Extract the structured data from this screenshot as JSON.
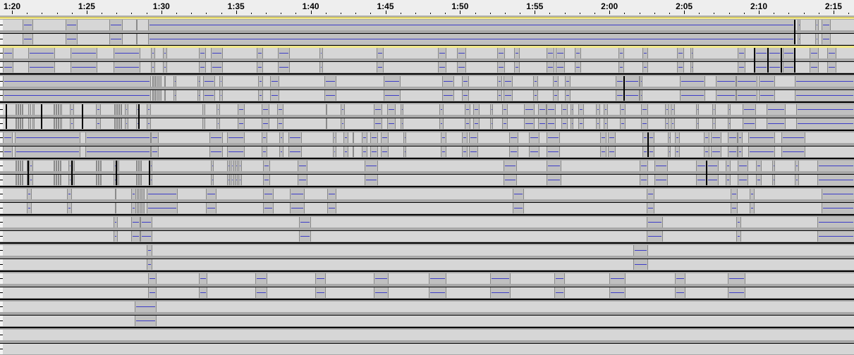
{
  "ruler": {
    "labels": [
      "1:20",
      "1:25",
      "1:30",
      "1:35",
      "1:40",
      "1:45",
      "1:50",
      "1:55",
      "2:00",
      "2:05",
      "2:10",
      "2:15"
    ],
    "start_seconds": 80,
    "label_interval_seconds": 5,
    "minor_tick_seconds": 1
  },
  "colors": {
    "background": "#d6d6d6",
    "clip": "#c0c0c0",
    "waveform": "#3c3cc8",
    "selection": "#f2e98a",
    "separator": "#a8a8a8"
  },
  "tracks": [
    {
      "selected": true,
      "markers": [
        132.4
      ],
      "clips": [
        [
          80.7,
          81.4
        ],
        [
          83.6,
          84.4
        ],
        [
          86.5,
          87.4
        ],
        [
          88.3,
          88.4
        ],
        [
          89.1,
          132.4
        ],
        [
          132.6,
          132.8
        ],
        [
          133.8,
          134.0
        ],
        [
          134.2,
          134.8
        ]
      ]
    },
    {
      "selected": false,
      "markers": [
        129.7,
        130.6,
        131.5,
        132.4
      ],
      "clips": [
        [
          79.4,
          80.1
        ],
        [
          81.1,
          82.9
        ],
        [
          83.9,
          85.7
        ],
        [
          86.8,
          88.6
        ],
        [
          89.3,
          89.6
        ],
        [
          90.1,
          90.4
        ],
        [
          92.5,
          93.0
        ],
        [
          93.3,
          94.1
        ],
        [
          96.4,
          96.8
        ],
        [
          97.8,
          98.6
        ],
        [
          100.6,
          100.8
        ],
        [
          104.4,
          104.9
        ],
        [
          108.5,
          109.1
        ],
        [
          109.8,
          110.4
        ],
        [
          112.5,
          113.0
        ],
        [
          113.6,
          114.0
        ],
        [
          115.8,
          116.3
        ],
        [
          116.4,
          117.0
        ],
        [
          117.7,
          118.1
        ],
        [
          120.6,
          121.0
        ],
        [
          122.2,
          122.6
        ],
        [
          124.5,
          125.0
        ],
        [
          125.4,
          125.6
        ],
        [
          128.6,
          129.1
        ],
        [
          129.7,
          130.6
        ],
        [
          130.6,
          131.5
        ],
        [
          131.6,
          132.4
        ],
        [
          133.4,
          134.0
        ],
        [
          134.6,
          135.2
        ]
      ]
    },
    {
      "selected": false,
      "markers": [
        121.0
      ],
      "clips": [
        [
          79.4,
          89.3
        ],
        [
          89.4,
          89.5
        ],
        [
          89.55,
          89.65
        ],
        [
          89.7,
          89.8
        ],
        [
          89.85,
          90.0
        ],
        [
          90.2,
          90.3
        ],
        [
          90.8,
          91.0
        ],
        [
          92.4,
          92.6
        ],
        [
          92.8,
          93.6
        ],
        [
          93.9,
          94.1
        ],
        [
          96.5,
          96.8
        ],
        [
          97.3,
          97.9
        ],
        [
          100.9,
          101.7
        ],
        [
          104.9,
          106.0
        ],
        [
          108.8,
          109.6
        ],
        [
          110.1,
          110.6
        ],
        [
          112.5,
          112.8
        ],
        [
          112.9,
          113.5
        ],
        [
          114.9,
          115.2
        ],
        [
          116.2,
          116.6
        ],
        [
          117.0,
          117.4
        ],
        [
          120.4,
          121.0
        ],
        [
          121.0,
          122.0
        ],
        [
          122.0,
          122.2
        ],
        [
          124.7,
          126.4
        ],
        [
          127.1,
          128.5
        ],
        [
          128.5,
          129.9
        ],
        [
          130.0,
          131.1
        ],
        [
          132.4,
          136.4
        ]
      ]
    },
    {
      "selected": false,
      "markers": [
        79.6,
        82.0,
        84.7,
        88.5
      ],
      "clips": [
        [
          80.24,
          80.33
        ],
        [
          80.38,
          80.47
        ],
        [
          80.52,
          80.61
        ],
        [
          80.66,
          80.75
        ],
        [
          81.09,
          81.27
        ],
        [
          81.37,
          81.51
        ],
        [
          82.78,
          82.88
        ],
        [
          82.93,
          83.02
        ],
        [
          83.07,
          83.16
        ],
        [
          83.21,
          83.35
        ],
        [
          83.87,
          84.15
        ],
        [
          85.62,
          85.95
        ],
        [
          86.84,
          86.94
        ],
        [
          86.99,
          87.08
        ],
        [
          87.13,
          87.22
        ],
        [
          87.27,
          87.36
        ],
        [
          87.55,
          87.79
        ],
        [
          88.31,
          88.54
        ],
        [
          89.02,
          89.3
        ],
        [
          92.74,
          92.93
        ],
        [
          93.69,
          93.92
        ],
        [
          95.1,
          95.58
        ],
        [
          96.71,
          97.23
        ],
        [
          97.75,
          98.17
        ],
        [
          101.0,
          101.1
        ],
        [
          102.0,
          102.3
        ],
        [
          104.2,
          104.8
        ],
        [
          105.1,
          105.7
        ],
        [
          106.0,
          106.2
        ],
        [
          108.6,
          108.9
        ],
        [
          110.3,
          110.7
        ],
        [
          110.9,
          111.3
        ],
        [
          112.0,
          112.2
        ],
        [
          112.8,
          113.2
        ],
        [
          114.3,
          115.0
        ],
        [
          115.2,
          115.8
        ],
        [
          115.8,
          116.4
        ],
        [
          116.8,
          117.2
        ],
        [
          117.4,
          117.6
        ],
        [
          117.9,
          118.3
        ],
        [
          119.1,
          119.4
        ],
        [
          119.6,
          119.9
        ],
        [
          120.7,
          121.1
        ],
        [
          122.1,
          122.6
        ],
        [
          123.7,
          124.0
        ],
        [
          124.1,
          124.4
        ],
        [
          125.8,
          126.0
        ],
        [
          126.9,
          127.1
        ],
        [
          127.9,
          128.1
        ],
        [
          128.9,
          129.8
        ],
        [
          130.5,
          131.8
        ],
        [
          132.5,
          136.4
        ]
      ]
    },
    {
      "selected": false,
      "markers": [
        122.6
      ],
      "clips": [
        [
          79.4,
          80.05
        ],
        [
          80.2,
          84.6
        ],
        [
          84.9,
          89.3
        ],
        [
          89.3,
          89.8
        ],
        [
          93.2,
          94.1
        ],
        [
          94.4,
          95.6
        ],
        [
          96.7,
          97.1
        ],
        [
          97.9,
          98.2
        ],
        [
          98.5,
          99.4
        ],
        [
          101.5,
          101.7
        ],
        [
          102.2,
          102.5
        ],
        [
          102.8,
          102.9
        ],
        [
          103.4,
          103.8
        ],
        [
          104.0,
          104.5
        ],
        [
          104.7,
          105.2
        ],
        [
          106.2,
          106.4
        ],
        [
          108.7,
          109.1
        ],
        [
          110.1,
          110.5
        ],
        [
          110.6,
          111.2
        ],
        [
          113.3,
          113.9
        ],
        [
          114.6,
          115.3
        ],
        [
          115.8,
          116.7
        ],
        [
          119.4,
          119.8
        ],
        [
          119.9,
          120.4
        ],
        [
          122.2,
          122.6
        ],
        [
          122.6,
          123.0
        ],
        [
          123.9,
          124.1
        ],
        [
          124.4,
          124.7
        ],
        [
          126.3,
          126.7
        ],
        [
          126.8,
          127.5
        ],
        [
          127.9,
          128.6
        ],
        [
          128.6,
          128.9
        ],
        [
          129.3,
          131.1
        ],
        [
          131.5,
          133.1
        ]
      ]
    },
    {
      "selected": false,
      "markers": [
        81.1,
        84.0,
        87.0,
        89.2,
        126.5
      ],
      "clips": [
        [
          80.24,
          80.33
        ],
        [
          80.38,
          80.47
        ],
        [
          80.52,
          80.61
        ],
        [
          80.66,
          80.71
        ],
        [
          81.0,
          81.1
        ],
        [
          81.15,
          81.4
        ],
        [
          82.78,
          82.88
        ],
        [
          82.93,
          83.02
        ],
        [
          83.07,
          83.16
        ],
        [
          83.21,
          83.3
        ],
        [
          83.8,
          84.0
        ],
        [
          84.05,
          84.2
        ],
        [
          85.6,
          85.7
        ],
        [
          85.75,
          85.85
        ],
        [
          85.9,
          86.0
        ],
        [
          86.8,
          87.0
        ],
        [
          87.05,
          87.2
        ],
        [
          88.3,
          88.4
        ],
        [
          88.45,
          88.55
        ],
        [
          88.6,
          88.7
        ],
        [
          89.2,
          89.4
        ],
        [
          93.3,
          93.5
        ],
        [
          94.4,
          94.6
        ],
        [
          94.65,
          94.85
        ],
        [
          94.9,
          95.1
        ],
        [
          95.15,
          95.4
        ],
        [
          96.8,
          97.3
        ],
        [
          99.1,
          99.8
        ],
        [
          103.6,
          104.5
        ],
        [
          112.9,
          113.8
        ],
        [
          115.8,
          116.8
        ],
        [
          122.0,
          122.6
        ],
        [
          123.0,
          123.9
        ],
        [
          125.8,
          126.5
        ],
        [
          126.5,
          127.3
        ],
        [
          127.8,
          128.1
        ],
        [
          128.6,
          129.3
        ],
        [
          129.8,
          130.2
        ],
        [
          130.9,
          131.1
        ],
        [
          132.4,
          132.7
        ],
        [
          133.9,
          136.4
        ]
      ]
    },
    {
      "selected": false,
      "markers": [],
      "clips": [
        [
          81.0,
          81.3
        ],
        [
          83.7,
          84.0
        ],
        [
          86.9,
          87.0
        ],
        [
          88.0,
          88.3
        ],
        [
          88.35,
          88.5
        ],
        [
          88.55,
          88.7
        ],
        [
          88.75,
          88.9
        ],
        [
          89.0,
          91.1
        ],
        [
          93.0,
          93.7
        ],
        [
          96.8,
          97.5
        ],
        [
          98.6,
          99.6
        ],
        [
          101.1,
          101.7
        ],
        [
          113.5,
          114.3
        ],
        [
          122.5,
          123.0
        ],
        [
          128.1,
          128.6
        ],
        [
          129.4,
          129.7
        ],
        [
          134.2,
          136.4
        ]
      ]
    },
    {
      "selected": false,
      "markers": [],
      "clips": [
        [
          86.8,
          87.1
        ],
        [
          88.0,
          88.6
        ],
        [
          88.6,
          89.4
        ],
        [
          99.2,
          100.0
        ],
        [
          122.5,
          123.6
        ],
        [
          128.5,
          128.8
        ],
        [
          133.9,
          136.4
        ]
      ]
    },
    {
      "selected": false,
      "markers": [],
      "clips": [
        [
          89.0,
          89.4
        ],
        [
          121.6,
          122.6
        ]
      ]
    },
    {
      "selected": false,
      "markers": [],
      "clips": [
        [
          89.1,
          89.7
        ],
        [
          92.5,
          93.1
        ],
        [
          96.3,
          97.1
        ],
        [
          100.3,
          101.0
        ],
        [
          104.2,
          105.2
        ],
        [
          107.9,
          109.1
        ],
        [
          112.0,
          113.4
        ],
        [
          116.3,
          117.0
        ],
        [
          120.0,
          121.1
        ],
        [
          124.4,
          125.1
        ],
        [
          127.9,
          129.1
        ]
      ]
    },
    {
      "selected": false,
      "markers": [],
      "clips": [
        [
          88.2,
          89.7
        ]
      ]
    },
    {
      "selected": false,
      "markers": [],
      "clips": []
    }
  ]
}
